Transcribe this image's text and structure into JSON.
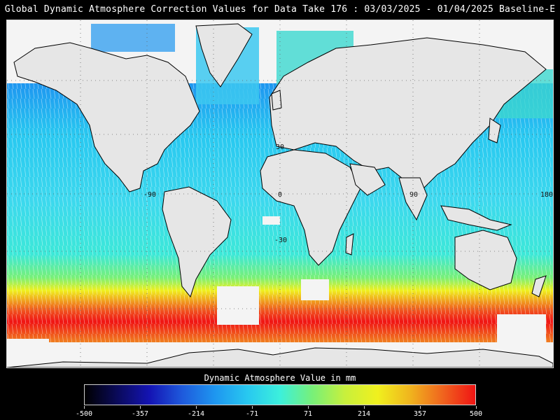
{
  "title": "Global Dynamic Atmosphere Correction Values for Data Take 176 : 03/03/2025 - 01/04/2025 Baseline-E",
  "map": {
    "lon_labels": [
      "-90",
      "0",
      "90",
      "180"
    ],
    "lat_labels": [
      "30",
      "-30"
    ],
    "land_color": "#e6e6e6",
    "coastline_color": "#000000"
  },
  "colorbar": {
    "title": "Dynamic Atmosphere Value in mm",
    "ticks": [
      "-500",
      "-357",
      "-214",
      "-71",
      "71",
      "214",
      "357",
      "500"
    ],
    "min": -500,
    "max": 500,
    "colors": [
      "#000000",
      "#0a0a5a",
      "#1414b4",
      "#1e5adc",
      "#1e96f0",
      "#28c8f0",
      "#3cf0dc",
      "#78f078",
      "#c8f03c",
      "#f0f01e",
      "#f0b41e",
      "#f0641e",
      "#f01414"
    ]
  }
}
